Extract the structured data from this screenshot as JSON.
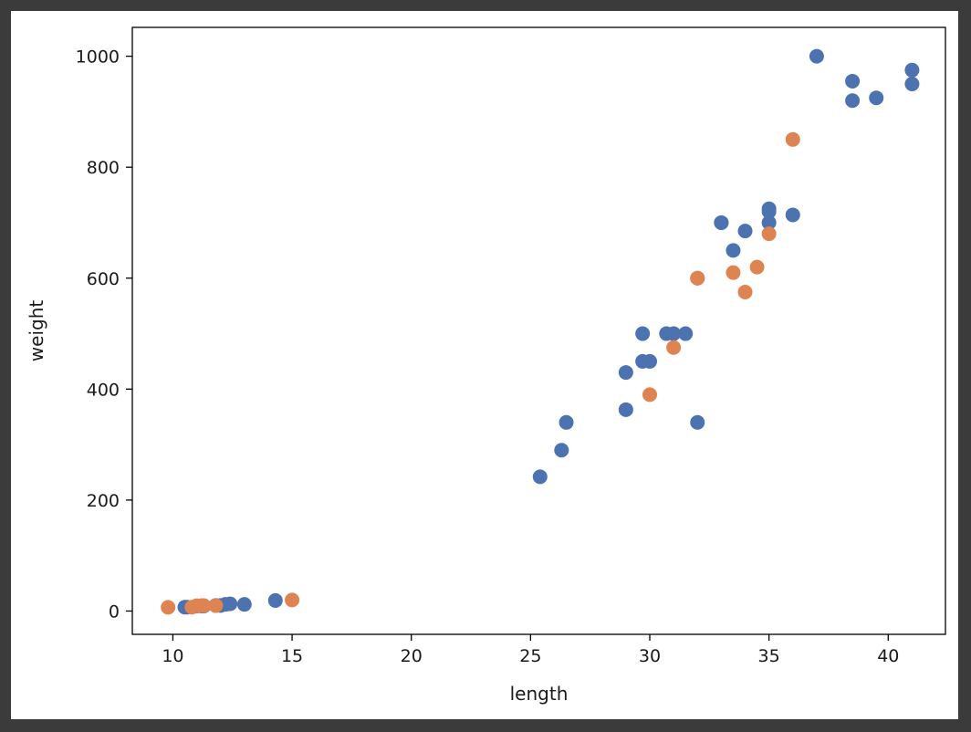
{
  "chart_data": {
    "type": "scatter",
    "xlabel": "length",
    "ylabel": "weight",
    "xlim": [
      8.3,
      42.4
    ],
    "ylim": [
      -42,
      1052
    ],
    "x_ticks": [
      10,
      15,
      20,
      25,
      30,
      35,
      40
    ],
    "y_ticks": [
      0,
      200,
      400,
      600,
      800,
      1000
    ],
    "grid": false,
    "series": [
      {
        "color": "#4c72b0",
        "points": [
          [
            10.5,
            7
          ],
          [
            10.6,
            7
          ],
          [
            11.0,
            9
          ],
          [
            11.2,
            9
          ],
          [
            11.3,
            9
          ],
          [
            11.8,
            10
          ],
          [
            11.8,
            10
          ],
          [
            12.0,
            10
          ],
          [
            12.2,
            12
          ],
          [
            12.4,
            13
          ],
          [
            13.0,
            12
          ],
          [
            14.3,
            19
          ],
          [
            25.4,
            242
          ],
          [
            26.3,
            290
          ],
          [
            26.5,
            340
          ],
          [
            29.0,
            363
          ],
          [
            29.0,
            430
          ],
          [
            29.7,
            450
          ],
          [
            29.7,
            500
          ],
          [
            30.0,
            450
          ],
          [
            30.7,
            500
          ],
          [
            31.0,
            500
          ],
          [
            31.5,
            500
          ],
          [
            32.0,
            340
          ],
          [
            32.0,
            600
          ],
          [
            33.0,
            700
          ],
          [
            33.0,
            700
          ],
          [
            33.5,
            650
          ],
          [
            34.0,
            685
          ],
          [
            35.0,
            700
          ],
          [
            35.0,
            725
          ],
          [
            35.0,
            720
          ],
          [
            36.0,
            714
          ],
          [
            37.0,
            1000
          ],
          [
            38.5,
            920
          ],
          [
            38.5,
            955
          ],
          [
            39.5,
            925
          ],
          [
            41.0,
            975
          ],
          [
            41.0,
            950
          ]
        ]
      },
      {
        "color": "#dd8452",
        "points": [
          [
            9.8,
            6.7
          ],
          [
            10.8,
            7
          ],
          [
            11.0,
            9.7
          ],
          [
            11.2,
            9.8
          ],
          [
            11.3,
            9.8
          ],
          [
            11.8,
            9.9
          ],
          [
            15.0,
            19.9
          ],
          [
            30.0,
            390
          ],
          [
            31.0,
            475
          ],
          [
            32.0,
            600
          ],
          [
            33.5,
            610
          ],
          [
            34.0,
            575
          ],
          [
            34.5,
            620
          ],
          [
            35.0,
            680
          ],
          [
            36.0,
            850
          ]
        ]
      }
    ]
  }
}
